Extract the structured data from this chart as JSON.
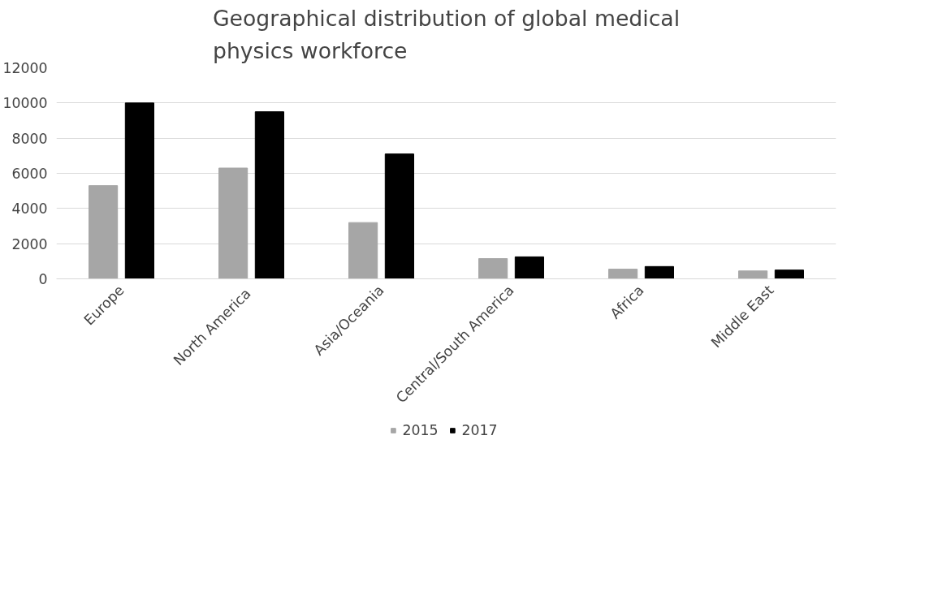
{
  "chart_data": {
    "type": "bar",
    "title": "Geographical distribution of global medical\nphysics workforce",
    "categories": [
      "Europe",
      "North  America",
      "Asia/Oceania",
      "Central/South America",
      "Africa",
      "Middle East"
    ],
    "series": [
      {
        "name": "2015",
        "color": "#a6a6a6",
        "values": [
          5300,
          6300,
          3200,
          1150,
          550,
          450
        ]
      },
      {
        "name": "2017",
        "color": "#000000",
        "values": [
          10000,
          9500,
          7100,
          1250,
          700,
          500
        ]
      }
    ],
    "ylim": [
      0,
      12000
    ],
    "yticks": [
      0,
      2000,
      4000,
      6000,
      8000,
      10000,
      12000
    ],
    "grid": "y",
    "legend": "bottom"
  }
}
